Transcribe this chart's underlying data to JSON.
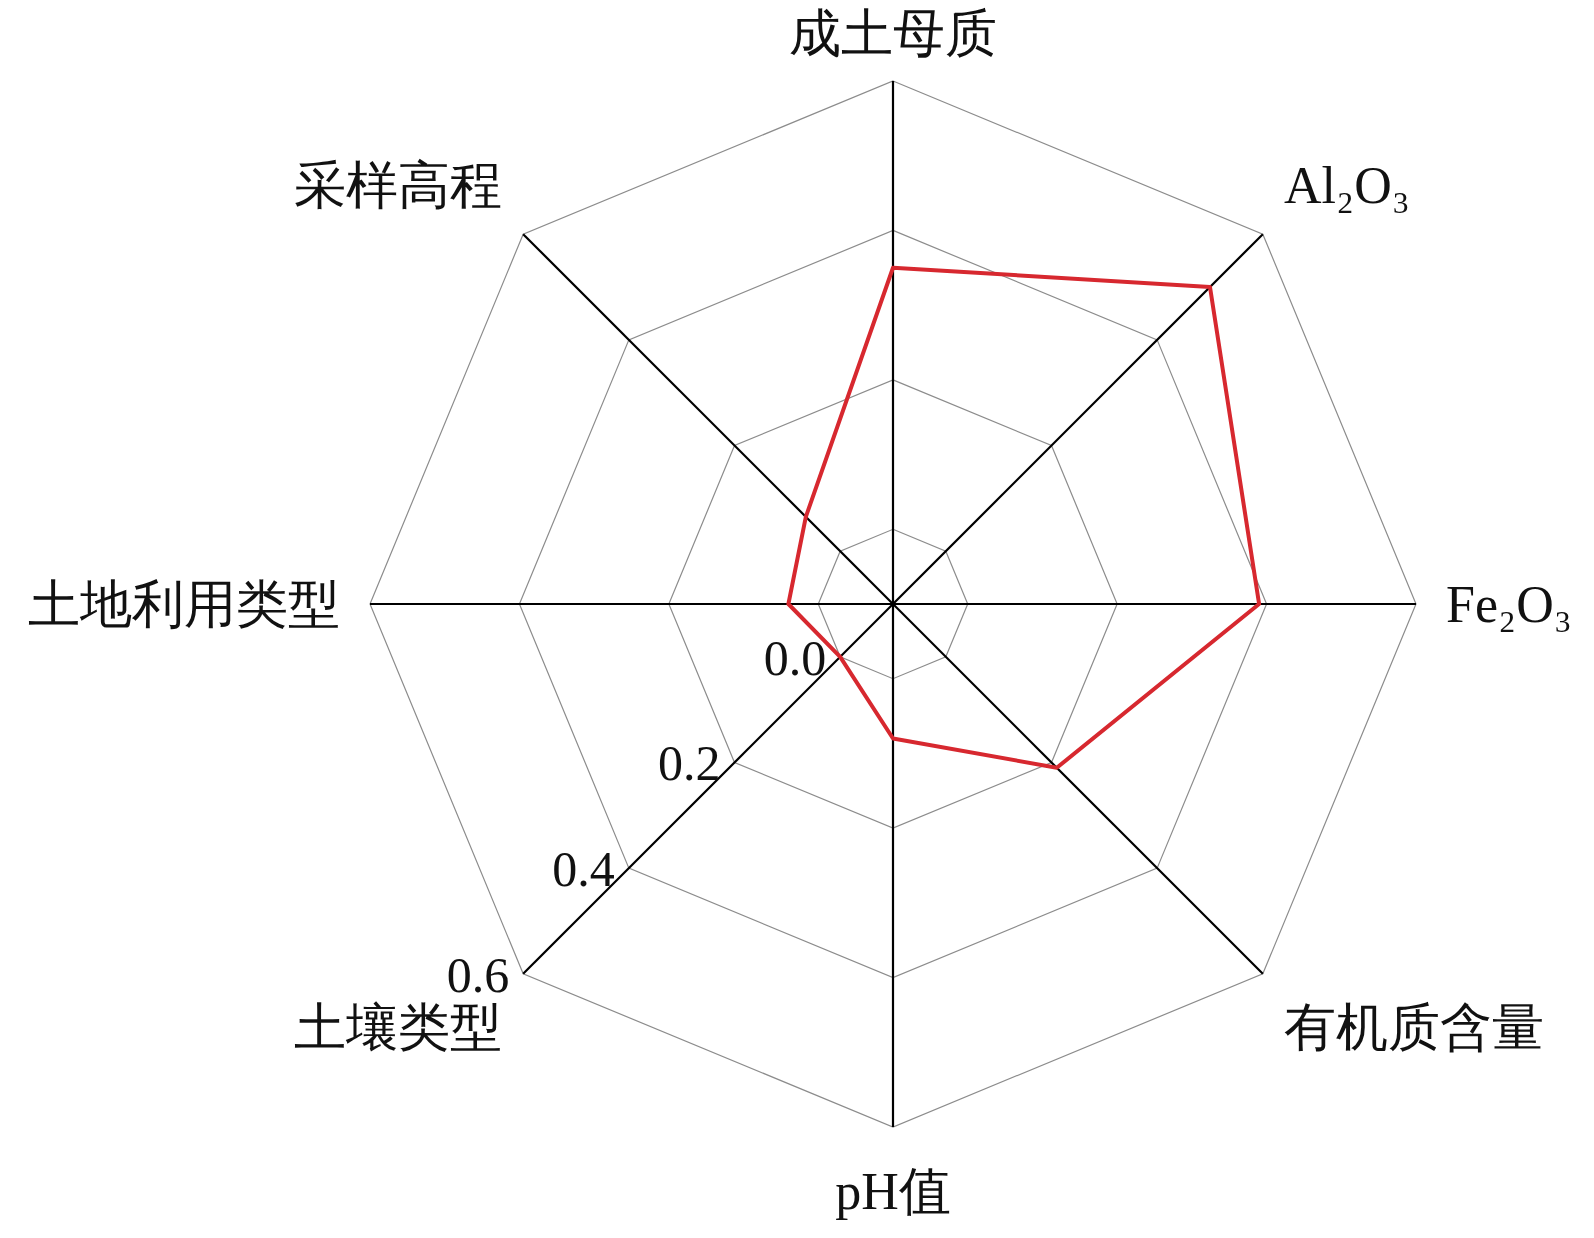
{
  "chart_data": {
    "type": "radar",
    "categories": [
      "成土母质",
      "Al₂O₃",
      "Fe₂O₃",
      "有机质含量",
      "pH值",
      "土壤类型",
      "土地利用类型",
      "采样高程"
    ],
    "ylim": [
      -0.1,
      0.6
    ],
    "yticks": [
      {
        "value": 0,
        "label": "0.0"
      },
      0.2,
      0.4,
      0.6
    ],
    "grid": true,
    "series": [
      {
        "color": "#d7282f",
        "values": [
          0.35,
          0.5,
          0.39,
          0.21,
          0.08,
          0.0,
          0.04,
          0.065
        ]
      }
    ]
  }
}
